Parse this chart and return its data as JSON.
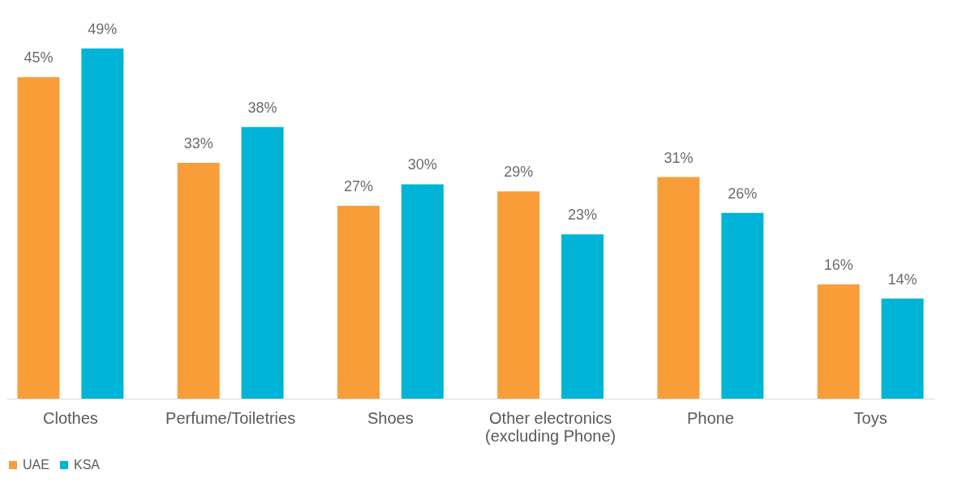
{
  "chart_data": {
    "type": "bar",
    "categories": [
      "Clothes",
      "Perfume/Toiletries",
      "Shoes",
      "Other electronics (excluding Phone)",
      "Phone",
      "Toys"
    ],
    "series": [
      {
        "name": "UAE",
        "color": "#f99d39",
        "values": [
          45,
          33,
          27,
          29,
          31,
          16
        ],
        "value_labels": [
          "45%",
          "33%",
          "27%",
          "29%",
          "31%",
          "16%"
        ]
      },
      {
        "name": "KSA",
        "color": "#00b4d8",
        "values": [
          49,
          38,
          30,
          23,
          26,
          14
        ],
        "value_labels": [
          "49%",
          "38%",
          "30%",
          "23%",
          "26%",
          "14%"
        ]
      }
    ],
    "grid": false,
    "legend": "bottom"
  }
}
